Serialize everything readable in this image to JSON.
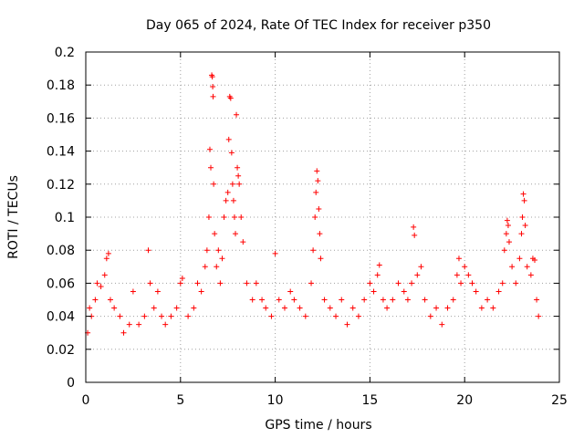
{
  "chart_data": {
    "type": "scatter",
    "title": "Day 065 of 2024, Rate Of TEC Index for receiver p350",
    "xlabel": "GPS time / hours",
    "ylabel": "ROTI / TECUs",
    "xlim": [
      0,
      25
    ],
    "ylim": [
      0,
      0.2
    ],
    "xticks": [
      0,
      5,
      10,
      15,
      20,
      25
    ],
    "xtick_labels": [
      "0",
      "5",
      "10",
      "15",
      "20",
      "25"
    ],
    "yticks": [
      0,
      0.02,
      0.04,
      0.06,
      0.08,
      0.1,
      0.12,
      0.14,
      0.16,
      0.18,
      0.2
    ],
    "ytick_labels": [
      "0",
      "0.02",
      "0.04",
      "0.06",
      "0.08",
      "0.1",
      "0.12",
      "0.14",
      "0.16",
      "0.18",
      "0.2"
    ],
    "grid": true,
    "marker": "+",
    "series": [
      {
        "name": "ROTI",
        "color": "#ff0000",
        "points": [
          [
            0.1,
            0.03
          ],
          [
            0.2,
            0.045
          ],
          [
            0.3,
            0.04
          ],
          [
            0.5,
            0.05
          ],
          [
            0.6,
            0.06
          ],
          [
            0.8,
            0.058
          ],
          [
            1.0,
            0.065
          ],
          [
            1.1,
            0.075
          ],
          [
            1.2,
            0.078
          ],
          [
            1.3,
            0.05
          ],
          [
            1.5,
            0.045
          ],
          [
            1.8,
            0.04
          ],
          [
            2.0,
            0.03
          ],
          [
            2.3,
            0.035
          ],
          [
            2.5,
            0.055
          ],
          [
            2.8,
            0.035
          ],
          [
            3.1,
            0.04
          ],
          [
            3.3,
            0.08
          ],
          [
            3.4,
            0.06
          ],
          [
            3.6,
            0.045
          ],
          [
            3.8,
            0.055
          ],
          [
            4.0,
            0.04
          ],
          [
            4.2,
            0.035
          ],
          [
            4.5,
            0.04
          ],
          [
            4.8,
            0.045
          ],
          [
            5.0,
            0.06
          ],
          [
            5.1,
            0.063
          ],
          [
            5.4,
            0.04
          ],
          [
            5.7,
            0.045
          ],
          [
            5.9,
            0.06
          ],
          [
            6.1,
            0.055
          ],
          [
            6.3,
            0.07
          ],
          [
            6.4,
            0.08
          ],
          [
            6.5,
            0.1
          ],
          [
            6.55,
            0.141
          ],
          [
            6.6,
            0.13
          ],
          [
            6.65,
            0.186
          ],
          [
            6.68,
            0.185
          ],
          [
            6.7,
            0.179
          ],
          [
            6.72,
            0.173
          ],
          [
            6.75,
            0.12
          ],
          [
            6.8,
            0.09
          ],
          [
            6.9,
            0.07
          ],
          [
            7.0,
            0.08
          ],
          [
            7.1,
            0.06
          ],
          [
            7.2,
            0.075
          ],
          [
            7.3,
            0.1
          ],
          [
            7.4,
            0.11
          ],
          [
            7.5,
            0.115
          ],
          [
            7.55,
            0.147
          ],
          [
            7.6,
            0.173
          ],
          [
            7.65,
            0.172
          ],
          [
            7.7,
            0.139
          ],
          [
            7.75,
            0.12
          ],
          [
            7.8,
            0.11
          ],
          [
            7.85,
            0.1
          ],
          [
            7.9,
            0.09
          ],
          [
            7.95,
            0.162
          ],
          [
            8.0,
            0.13
          ],
          [
            8.05,
            0.125
          ],
          [
            8.1,
            0.12
          ],
          [
            8.2,
            0.1
          ],
          [
            8.3,
            0.085
          ],
          [
            8.5,
            0.06
          ],
          [
            8.8,
            0.05
          ],
          [
            9.0,
            0.06
          ],
          [
            9.3,
            0.05
          ],
          [
            9.5,
            0.045
          ],
          [
            9.8,
            0.04
          ],
          [
            10.0,
            0.078
          ],
          [
            10.2,
            0.05
          ],
          [
            10.5,
            0.045
          ],
          [
            10.8,
            0.055
          ],
          [
            11.0,
            0.05
          ],
          [
            11.3,
            0.045
          ],
          [
            11.6,
            0.04
          ],
          [
            11.9,
            0.06
          ],
          [
            12.0,
            0.08
          ],
          [
            12.1,
            0.1
          ],
          [
            12.15,
            0.115
          ],
          [
            12.2,
            0.128
          ],
          [
            12.25,
            0.122
          ],
          [
            12.3,
            0.105
          ],
          [
            12.35,
            0.09
          ],
          [
            12.4,
            0.075
          ],
          [
            12.6,
            0.05
          ],
          [
            12.9,
            0.045
          ],
          [
            13.2,
            0.04
          ],
          [
            13.5,
            0.05
          ],
          [
            13.8,
            0.035
          ],
          [
            14.1,
            0.045
          ],
          [
            14.4,
            0.04
          ],
          [
            14.7,
            0.05
          ],
          [
            15.0,
            0.06
          ],
          [
            15.2,
            0.055
          ],
          [
            15.4,
            0.065
          ],
          [
            15.5,
            0.071
          ],
          [
            15.7,
            0.05
          ],
          [
            15.9,
            0.045
          ],
          [
            16.2,
            0.05
          ],
          [
            16.5,
            0.06
          ],
          [
            16.8,
            0.055
          ],
          [
            17.0,
            0.05
          ],
          [
            17.2,
            0.06
          ],
          [
            17.3,
            0.094
          ],
          [
            17.35,
            0.089
          ],
          [
            17.5,
            0.065
          ],
          [
            17.7,
            0.07
          ],
          [
            17.9,
            0.05
          ],
          [
            18.2,
            0.04
          ],
          [
            18.5,
            0.045
          ],
          [
            18.8,
            0.035
          ],
          [
            19.1,
            0.045
          ],
          [
            19.4,
            0.05
          ],
          [
            19.6,
            0.065
          ],
          [
            19.7,
            0.075
          ],
          [
            19.8,
            0.06
          ],
          [
            20.0,
            0.07
          ],
          [
            20.2,
            0.065
          ],
          [
            20.4,
            0.06
          ],
          [
            20.6,
            0.055
          ],
          [
            20.9,
            0.045
          ],
          [
            21.2,
            0.05
          ],
          [
            21.5,
            0.045
          ],
          [
            21.8,
            0.055
          ],
          [
            22.0,
            0.06
          ],
          [
            22.1,
            0.08
          ],
          [
            22.2,
            0.09
          ],
          [
            22.25,
            0.098
          ],
          [
            22.3,
            0.095
          ],
          [
            22.35,
            0.085
          ],
          [
            22.5,
            0.07
          ],
          [
            22.7,
            0.06
          ],
          [
            22.9,
            0.075
          ],
          [
            23.0,
            0.09
          ],
          [
            23.05,
            0.1
          ],
          [
            23.1,
            0.114
          ],
          [
            23.15,
            0.11
          ],
          [
            23.2,
            0.095
          ],
          [
            23.3,
            0.07
          ],
          [
            23.5,
            0.065
          ],
          [
            23.6,
            0.075
          ],
          [
            23.7,
            0.074
          ],
          [
            23.8,
            0.05
          ],
          [
            23.9,
            0.04
          ]
        ]
      }
    ]
  }
}
